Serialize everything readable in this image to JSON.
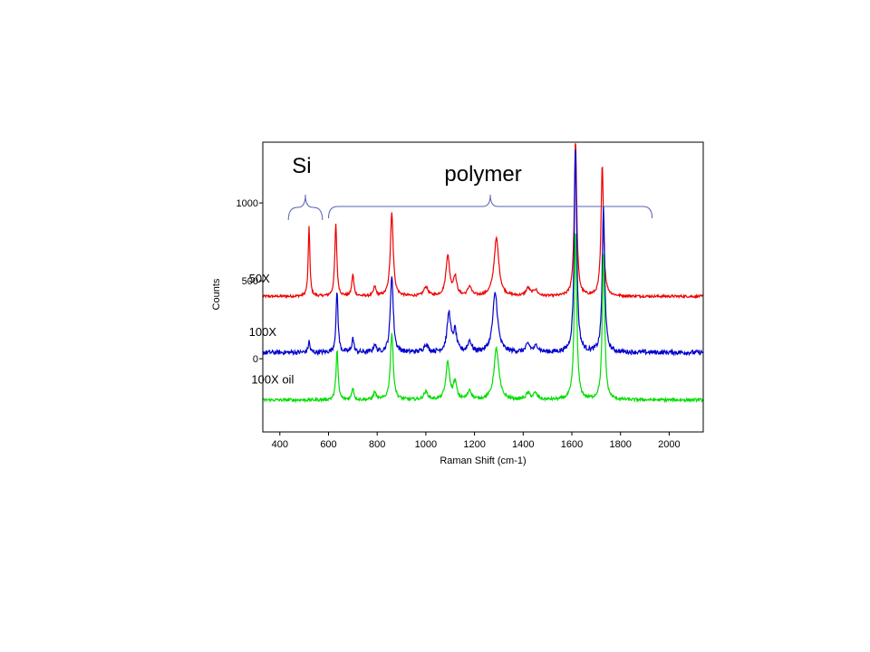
{
  "chart_data": {
    "type": "line",
    "xlabel": "Raman Shift (cm-1)",
    "ylabel": "Counts",
    "xlim": [
      330,
      2140
    ],
    "ylim": [
      -470,
      1390
    ],
    "xticks": [
      400,
      600,
      800,
      1000,
      1200,
      1400,
      1600,
      1800,
      2000
    ],
    "yticks": [
      0,
      500,
      1000
    ],
    "grid": false,
    "series": [
      {
        "name": "50X",
        "color": "#ee0000",
        "baseline": 400,
        "noise": 8,
        "peaks": [
          [
            520,
            450,
            4
          ],
          [
            630,
            460,
            5
          ],
          [
            700,
            140,
            5
          ],
          [
            790,
            60,
            6
          ],
          [
            860,
            540,
            7
          ],
          [
            1000,
            60,
            10
          ],
          [
            1090,
            260,
            9
          ],
          [
            1120,
            120,
            8
          ],
          [
            1180,
            60,
            9
          ],
          [
            1290,
            370,
            12
          ],
          [
            1420,
            50,
            10
          ],
          [
            1450,
            40,
            10
          ],
          [
            1615,
            1000,
            6
          ],
          [
            1725,
            840,
            6
          ]
        ]
      },
      {
        "name": "100X",
        "color": "#0000cc",
        "baseline": 40,
        "noise": 15,
        "peaks": [
          [
            520,
            70,
            4
          ],
          [
            635,
            390,
            5
          ],
          [
            700,
            90,
            5
          ],
          [
            790,
            50,
            6
          ],
          [
            860,
            500,
            7
          ],
          [
            1000,
            50,
            10
          ],
          [
            1095,
            250,
            9
          ],
          [
            1120,
            130,
            8
          ],
          [
            1180,
            70,
            9
          ],
          [
            1285,
            380,
            12
          ],
          [
            1420,
            50,
            10
          ],
          [
            1455,
            40,
            10
          ],
          [
            1615,
            1330,
            6
          ],
          [
            1730,
            930,
            6
          ]
        ]
      },
      {
        "name": "100X oil",
        "color": "#00dd00",
        "baseline": -265,
        "noise": 10,
        "peaks": [
          [
            635,
            320,
            5
          ],
          [
            700,
            80,
            5
          ],
          [
            790,
            50,
            6
          ],
          [
            860,
            430,
            7
          ],
          [
            1000,
            50,
            10
          ],
          [
            1090,
            240,
            9
          ],
          [
            1120,
            110,
            8
          ],
          [
            1180,
            60,
            9
          ],
          [
            1290,
            330,
            12
          ],
          [
            1420,
            40,
            10
          ],
          [
            1450,
            40,
            10
          ],
          [
            1615,
            1090,
            6
          ],
          [
            1730,
            930,
            6
          ]
        ]
      }
    ],
    "series_labels": [
      "50X",
      "100X",
      "100X oil"
    ],
    "annotations": [
      {
        "text": "Si",
        "bracket_from": 435,
        "bracket_to": 575
      },
      {
        "text": "polymer",
        "bracket_from": 600,
        "bracket_to": 1930
      }
    ]
  }
}
